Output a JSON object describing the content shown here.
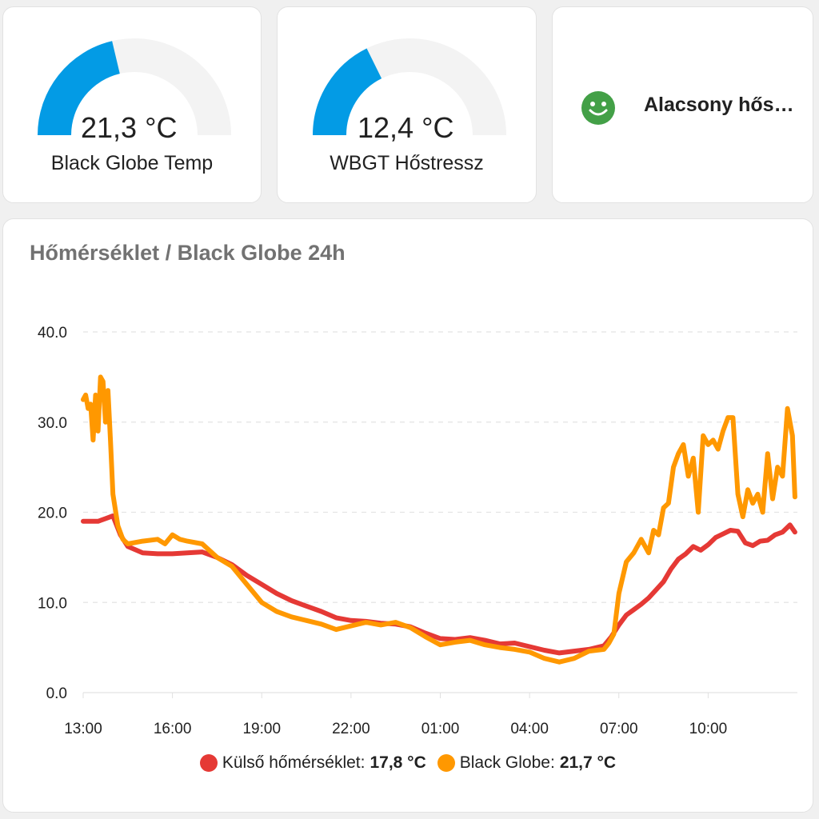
{
  "gauges": [
    {
      "value_text": "21,3 °C",
      "name": "Black Globe Temp",
      "value": 21.3,
      "min": 0,
      "max": 50,
      "color": "#039be5",
      "track_color": "#f3f3f3"
    },
    {
      "value_text": "12,4 °C",
      "name": "WBGT Hőstressz",
      "value": 12.4,
      "min": 0,
      "max": 35,
      "color": "#039be5",
      "track_color": "#f3f3f3"
    }
  ],
  "status": {
    "icon": "smile-icon",
    "icon_color": "#43a047",
    "text": "Alacsony hőstressz"
  },
  "graph": {
    "title": "Hőmérséklet / Black Globe 24h"
  },
  "chart_data": {
    "type": "line",
    "title": "Hőmérséklet / Black Globe 24h",
    "x_unit": "hours",
    "x_ticks": [
      "13:00",
      "16:00",
      "19:00",
      "22:00",
      "01:00",
      "04:00",
      "07:00",
      "10:00"
    ],
    "y_ticks": [
      "0.0",
      "10.0",
      "20.0",
      "30.0",
      "40.0"
    ],
    "ylim": [
      0,
      40
    ],
    "grid": true,
    "legend_position": "bottom",
    "series": [
      {
        "name": "Külső hőmérséklet",
        "color": "#e53935",
        "current_text": "17,8 °C",
        "x": [
          "13:00",
          "13:30",
          "13:45",
          "14:00",
          "14:15",
          "14:30",
          "15:00",
          "15:30",
          "16:00",
          "16:30",
          "17:00",
          "17:30",
          "18:00",
          "18:30",
          "19:00",
          "19:30",
          "20:00",
          "20:30",
          "21:00",
          "21:30",
          "22:00",
          "22:30",
          "23:00",
          "23:30",
          "00:00",
          "00:30",
          "01:00",
          "01:30",
          "02:00",
          "02:30",
          "03:00",
          "03:30",
          "04:00",
          "04:30",
          "05:00",
          "05:30",
          "06:00",
          "06:30",
          "06:45",
          "07:00",
          "07:15",
          "07:30",
          "07:45",
          "08:00",
          "08:15",
          "08:30",
          "08:45",
          "09:00",
          "09:15",
          "09:30",
          "09:45",
          "10:00",
          "10:15",
          "10:30",
          "10:45",
          "11:00",
          "11:15",
          "11:30",
          "11:45",
          "12:00",
          "12:15",
          "12:30",
          "12:45",
          "12:55"
        ],
        "values": [
          19.0,
          19.0,
          19.3,
          19.6,
          17.5,
          16.2,
          15.5,
          15.4,
          15.4,
          15.5,
          15.6,
          15.0,
          14.2,
          13.0,
          12.0,
          11.0,
          10.2,
          9.6,
          9.0,
          8.3,
          8.0,
          7.9,
          7.7,
          7.6,
          7.3,
          6.6,
          6.0,
          5.9,
          6.1,
          5.8,
          5.4,
          5.5,
          5.1,
          4.7,
          4.4,
          4.6,
          4.8,
          5.2,
          6.2,
          7.5,
          8.6,
          9.2,
          9.8,
          10.5,
          11.4,
          12.3,
          13.7,
          14.8,
          15.4,
          16.2,
          15.8,
          16.4,
          17.2,
          17.6,
          18.0,
          17.9,
          16.6,
          16.3,
          16.8,
          16.9,
          17.5,
          17.8,
          18.6,
          17.8
        ]
      },
      {
        "name": "Black Globe",
        "color": "#ff9800",
        "current_text": "21,7 °C",
        "x": [
          "13:00",
          "13:05",
          "13:10",
          "13:15",
          "13:20",
          "13:25",
          "13:30",
          "13:35",
          "13:40",
          "13:45",
          "13:50",
          "13:55",
          "14:00",
          "14:10",
          "14:20",
          "14:30",
          "15:00",
          "15:30",
          "15:45",
          "16:00",
          "16:15",
          "16:30",
          "17:00",
          "17:30",
          "18:00",
          "18:30",
          "19:00",
          "19:30",
          "20:00",
          "20:30",
          "21:00",
          "21:30",
          "22:00",
          "22:30",
          "23:00",
          "23:30",
          "00:00",
          "00:30",
          "01:00",
          "01:30",
          "02:00",
          "02:30",
          "03:00",
          "03:30",
          "04:00",
          "04:30",
          "05:00",
          "05:30",
          "06:00",
          "06:30",
          "06:40",
          "06:50",
          "07:00",
          "07:15",
          "07:30",
          "07:45",
          "08:00",
          "08:10",
          "08:20",
          "08:30",
          "08:40",
          "08:50",
          "09:00",
          "09:10",
          "09:20",
          "09:30",
          "09:40",
          "09:50",
          "10:00",
          "10:10",
          "10:20",
          "10:30",
          "10:40",
          "10:50",
          "11:00",
          "11:10",
          "11:20",
          "11:30",
          "11:40",
          "11:50",
          "12:00",
          "12:10",
          "12:20",
          "12:30",
          "12:40",
          "12:45",
          "12:50",
          "12:55"
        ],
        "values": [
          32.5,
          33.0,
          31.5,
          32.0,
          28.0,
          33.0,
          29.0,
          35.0,
          34.5,
          30.0,
          33.5,
          28.0,
          22.0,
          18.5,
          17.0,
          16.5,
          16.8,
          17.0,
          16.5,
          17.5,
          17.0,
          16.8,
          16.5,
          15.0,
          14.0,
          12.0,
          10.0,
          9.0,
          8.4,
          8.0,
          7.6,
          7.0,
          7.4,
          7.8,
          7.5,
          7.8,
          7.2,
          6.2,
          5.3,
          5.6,
          5.8,
          5.3,
          5.0,
          4.8,
          4.5,
          3.8,
          3.4,
          3.8,
          4.6,
          4.8,
          5.5,
          6.5,
          11.0,
          14.5,
          15.5,
          17.0,
          15.5,
          18.0,
          17.5,
          20.5,
          21.0,
          25.0,
          26.5,
          27.5,
          24.0,
          26.0,
          20.0,
          28.5,
          27.5,
          28.0,
          27.0,
          29.0,
          30.5,
          30.5,
          22.0,
          19.5,
          22.5,
          21.0,
          22.0,
          20.0,
          26.5,
          21.5,
          25.0,
          24.0,
          31.5,
          30.0,
          28.5,
          21.7
        ]
      }
    ]
  }
}
